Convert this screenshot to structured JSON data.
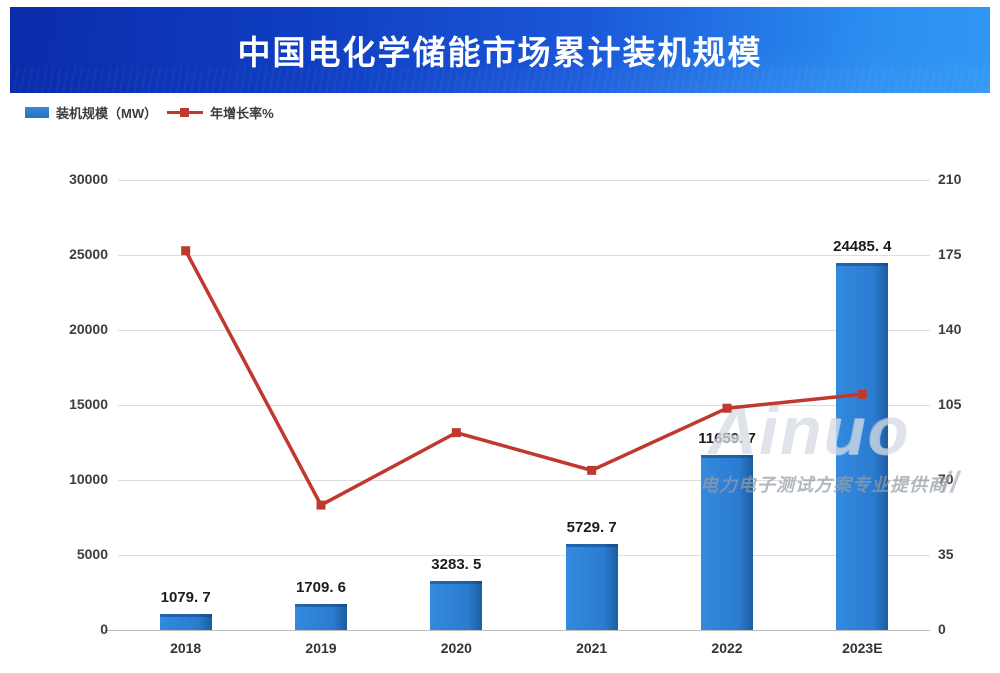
{
  "header": {
    "title": "中国电化学储能市场累计装机规模"
  },
  "legend": {
    "bar_label": "装机规模（MW）",
    "line_label": "年增长率%"
  },
  "watermark": {
    "brand": "Ainuo",
    "tagline": "电力电子测试方案专业提供商",
    "slashes": "//"
  },
  "colors": {
    "bar_blue": "#2b7cd1",
    "bar_edge_dark": "#1d5da1",
    "line_red": "#c0392f",
    "banner_left": "#0a2caa",
    "banner_right": "#2f97f5",
    "gridline": "#dcdcdc",
    "tick_text": "#3d3d3d"
  },
  "chart_data": {
    "type": "bar+line combo",
    "title": "中国电化学储能市场累计装机规模",
    "categories": [
      "2018",
      "2019",
      "2020",
      "2021",
      "2022",
      "2023E"
    ],
    "series": [
      {
        "name": "装机规模（MW）",
        "type": "bar",
        "axis": "left",
        "values": [
          1079.7,
          1709.6,
          3283.5,
          5729.7,
          11659.7,
          24485.4
        ],
        "value_labels": [
          "1079. 7",
          "1709. 6",
          "3283. 5",
          "5729. 7",
          "11659. 7",
          "24485. 4"
        ],
        "color": "#2b7cd1"
      },
      {
        "name": "年增长率%",
        "type": "line",
        "axis": "right",
        "values": [
          177,
          58.3,
          92.1,
          74.5,
          103.5,
          110
        ],
        "color": "#c0392f",
        "marker": "square"
      }
    ],
    "left_axis": {
      "min": 0,
      "max": 30000,
      "ticks": [
        "30000",
        "25000",
        "20000",
        "15000",
        "10000",
        "5000",
        "0"
      ]
    },
    "right_axis": {
      "min": 0,
      "max": 210,
      "ticks": [
        "210",
        "175",
        "140",
        "105",
        "70",
        "35",
        "0"
      ]
    },
    "grid": true,
    "legend_position": "top-left"
  }
}
